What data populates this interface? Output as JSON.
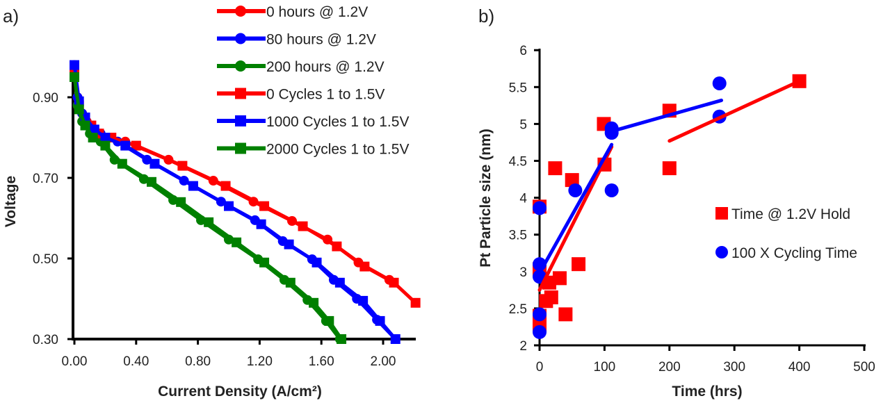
{
  "chart_data": [
    {
      "panel_label": "a)",
      "type": "line",
      "xlabel": "Current Density (A/cm²)",
      "ylabel": "Voltage",
      "xlim": [
        0,
        2.22
      ],
      "ylim": [
        0.3,
        0.98
      ],
      "xticks": [
        "0.00",
        "0.40",
        "0.80",
        "1.20",
        "1.60",
        "2.00"
      ],
      "yticks": [
        "0.30",
        "0.50",
        "0.70",
        "0.90"
      ],
      "grid": false,
      "legend_position": "top-right",
      "series": [
        {
          "name": "0 hours @ 1.2V",
          "color": "#ff0000",
          "marker": "circle",
          "x": [
            0,
            0.02,
            0.05,
            0.08,
            0.13,
            0.19,
            0.33,
            0.61,
            0.9,
            1.16,
            1.41,
            1.64,
            1.84,
            2.04
          ],
          "y": [
            0.97,
            0.9,
            0.86,
            0.84,
            0.82,
            0.8,
            0.79,
            0.745,
            0.693,
            0.641,
            0.593,
            0.547,
            0.49,
            0.447
          ]
        },
        {
          "name": "80 hours @ 1.2V",
          "color": "#0000ff",
          "marker": "circle",
          "x": [
            0,
            0.02,
            0.05,
            0.1,
            0.17,
            0.28,
            0.47,
            0.71,
            0.95,
            1.17,
            1.35,
            1.54,
            1.68,
            1.83,
            1.96,
            2.08
          ],
          "y": [
            0.98,
            0.9,
            0.86,
            0.83,
            0.81,
            0.79,
            0.745,
            0.693,
            0.641,
            0.595,
            0.543,
            0.498,
            0.447,
            0.4,
            0.348,
            0.3
          ]
        },
        {
          "name": "200 hours @ 1.2V",
          "color": "#008000",
          "marker": "circle",
          "x": [
            0,
            0.02,
            0.05,
            0.1,
            0.17,
            0.26,
            0.45,
            0.64,
            0.82,
            1.0,
            1.19,
            1.36,
            1.51,
            1.63,
            1.72
          ],
          "y": [
            0.96,
            0.88,
            0.84,
            0.81,
            0.79,
            0.745,
            0.697,
            0.645,
            0.595,
            0.547,
            0.498,
            0.447,
            0.397,
            0.345,
            0.3
          ]
        },
        {
          "name": "0 Cycles 1 to 1.5V",
          "color": "#ff0000",
          "marker": "square",
          "x": [
            0,
            0.03,
            0.07,
            0.11,
            0.16,
            0.24,
            0.4,
            0.7,
            0.98,
            1.23,
            1.48,
            1.7,
            1.88,
            2.07,
            2.21
          ],
          "y": [
            0.97,
            0.88,
            0.85,
            0.83,
            0.81,
            0.8,
            0.78,
            0.73,
            0.68,
            0.63,
            0.58,
            0.53,
            0.48,
            0.44,
            0.39
          ]
        },
        {
          "name": "1000 Cycles 1 to 1.5V",
          "color": "#0000ff",
          "marker": "square",
          "x": [
            0,
            0.03,
            0.07,
            0.13,
            0.2,
            0.33,
            0.52,
            0.77,
            1.0,
            1.21,
            1.39,
            1.57,
            1.72,
            1.87,
            1.98,
            2.08
          ],
          "y": [
            0.98,
            0.89,
            0.85,
            0.82,
            0.8,
            0.78,
            0.735,
            0.68,
            0.63,
            0.585,
            0.535,
            0.49,
            0.44,
            0.395,
            0.345,
            0.3
          ]
        },
        {
          "name": "2000 Cycles 1 to 1.5V",
          "color": "#008000",
          "marker": "square",
          "x": [
            0,
            0.03,
            0.07,
            0.12,
            0.2,
            0.31,
            0.5,
            0.69,
            0.87,
            1.05,
            1.23,
            1.4,
            1.55,
            1.65,
            1.73
          ],
          "y": [
            0.95,
            0.87,
            0.83,
            0.8,
            0.78,
            0.735,
            0.69,
            0.64,
            0.59,
            0.54,
            0.49,
            0.44,
            0.39,
            0.345,
            0.3
          ]
        }
      ]
    },
    {
      "panel_label": "b)",
      "type": "scatter",
      "xlabel": "Time (hrs)",
      "ylabel": "Pt Particle size (nm)",
      "xlim": [
        0,
        500
      ],
      "ylim": [
        2,
        6
      ],
      "xticks": [
        "0",
        "100",
        "200",
        "300",
        "400",
        "500"
      ],
      "yticks": [
        "2",
        "2.5",
        "3",
        "3.5",
        "4",
        "4.5",
        "5",
        "5.5",
        "6"
      ],
      "grid": false,
      "legend_position": "right",
      "series": [
        {
          "name": "Time @ 1.2V Hold",
          "color": "#ff0000",
          "marker": "square",
          "x": [
            0,
            0,
            0,
            0,
            15,
            31,
            18,
            10,
            40,
            60,
            24,
            50,
            99,
            100,
            200,
            200,
            400
          ],
          "y": [
            3.88,
            3.03,
            2.4,
            2.27,
            2.85,
            2.91,
            2.65,
            2.6,
            2.42,
            3.1,
            4.4,
            4.24,
            5.0,
            4.45,
            5.18,
            4.4,
            5.58
          ],
          "trend_segments": [
            {
              "x": [
                0,
                111
              ],
              "y": [
                2.75,
                4.69
              ]
            },
            {
              "x": [
                200,
                400
              ],
              "y": [
                4.77,
                5.58
              ]
            }
          ]
        },
        {
          "name": "100 X Cycling Time",
          "color": "#0000ff",
          "marker": "circle",
          "x": [
            0,
            0,
            0,
            0,
            0,
            55,
            111,
            111,
            111,
            277,
            277
          ],
          "y": [
            3.86,
            3.1,
            2.93,
            2.42,
            2.18,
            4.1,
            4.88,
            4.94,
            4.1,
            5.55,
            5.1
          ],
          "trend_segments": [
            {
              "x": [
                0,
                111
              ],
              "y": [
                2.98,
                4.72
              ]
            },
            {
              "x": [
                111,
                280
              ],
              "y": [
                4.9,
                5.32
              ]
            }
          ]
        }
      ]
    }
  ]
}
